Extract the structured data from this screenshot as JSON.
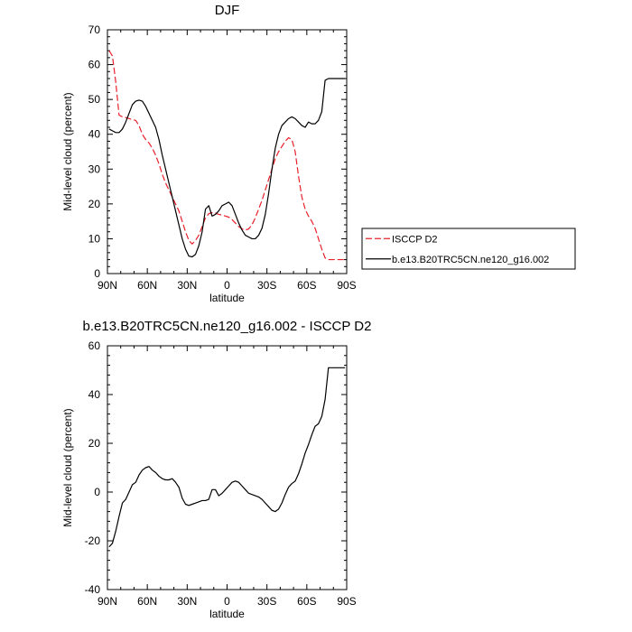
{
  "chart_data": [
    {
      "type": "line",
      "title": "DJF",
      "xlabel": "latitude",
      "ylabel": "Mid-level cloud (percent)",
      "xlim": [
        90,
        -90
      ],
      "ylim": [
        0,
        70
      ],
      "xticks": [
        90,
        60,
        30,
        0,
        -30,
        -60,
        -90
      ],
      "xticklabels": [
        "90N",
        "60N",
        "30N",
        "0",
        "30S",
        "60S",
        "90S"
      ],
      "yticks": [
        0,
        10,
        20,
        30,
        40,
        50,
        60,
        70
      ],
      "yticklabels": [
        "0",
        "10",
        "20",
        "30",
        "40",
        "50",
        "60",
        "70"
      ],
      "grid": false,
      "legend_position": "outside-right",
      "series": [
        {
          "name": "ISCCP D2",
          "color": "#e8202a",
          "dash": "dashed",
          "x": [
            88.75,
            86.25,
            83.75,
            81.25,
            78.75,
            76.25,
            73.75,
            71.25,
            68.75,
            66.25,
            63.75,
            61.25,
            58.75,
            56.25,
            53.75,
            51.25,
            48.75,
            46.25,
            43.75,
            41.25,
            38.75,
            36.25,
            33.75,
            31.25,
            28.75,
            26.25,
            23.75,
            21.25,
            18.75,
            16.25,
            13.75,
            11.25,
            8.75,
            6.25,
            3.75,
            1.25,
            -1.25,
            -3.75,
            -6.25,
            -8.75,
            -11.25,
            -13.75,
            -16.25,
            -18.75,
            -21.25,
            -23.75,
            -26.25,
            -28.75,
            -31.25,
            -33.75,
            -36.25,
            -38.75,
            -41.25,
            -43.75,
            -46.25,
            -48.75,
            -51.25,
            -53.75,
            -56.25,
            -58.75,
            -61.25,
            -63.75,
            -66.25,
            -68.75,
            -71.25,
            -73.75,
            -76.25,
            -78.75,
            -81.25,
            -83.75,
            -86.25,
            -88.75
          ],
          "values": [
            64.0,
            62.5,
            55.0,
            45.5,
            45.0,
            44.8,
            44.5,
            44.2,
            44.0,
            42.5,
            40.0,
            38.5,
            37.5,
            36.0,
            34.0,
            31.5,
            28.5,
            26.0,
            24.0,
            22.0,
            20.0,
            18.0,
            15.0,
            12.0,
            9.5,
            8.5,
            9.5,
            11.0,
            13.5,
            16.0,
            17.2,
            17.5,
            17.4,
            17.0,
            16.8,
            16.5,
            16.2,
            15.5,
            14.5,
            13.5,
            12.8,
            12.5,
            12.8,
            14.0,
            16.0,
            18.5,
            21.0,
            24.0,
            27.0,
            30.0,
            33.0,
            35.0,
            36.5,
            38.0,
            39.0,
            38.5,
            35.0,
            28.0,
            22.0,
            18.5,
            16.5,
            15.0,
            13.0,
            10.0,
            7.0,
            4.5,
            4.0,
            4.0,
            4.0,
            4.0,
            4.0,
            4.0
          ]
        },
        {
          "name": "b.e13.B20TRC5CN.ne120_g16.002",
          "color": "#000000",
          "dash": "solid",
          "x": [
            88.75,
            86.25,
            83.75,
            81.25,
            78.75,
            76.25,
            73.75,
            71.25,
            68.75,
            66.25,
            63.75,
            61.25,
            58.75,
            56.25,
            53.75,
            51.25,
            48.75,
            46.25,
            43.75,
            41.25,
            38.75,
            36.25,
            33.75,
            31.25,
            28.75,
            26.25,
            23.75,
            21.25,
            18.75,
            16.25,
            13.75,
            11.25,
            8.75,
            6.25,
            3.75,
            1.25,
            -1.25,
            -3.75,
            -6.25,
            -8.75,
            -11.25,
            -13.75,
            -16.25,
            -18.75,
            -21.25,
            -23.75,
            -26.25,
            -28.75,
            -31.25,
            -33.75,
            -36.25,
            -38.75,
            -41.25,
            -43.75,
            -46.25,
            -48.75,
            -51.25,
            -53.75,
            -56.25,
            -58.75,
            -61.25,
            -63.75,
            -66.25,
            -68.75,
            -71.25,
            -73.75,
            -76.25,
            -78.75,
            -81.25,
            -83.75,
            -86.25,
            -88.75
          ],
          "values": [
            41.5,
            41.0,
            40.5,
            40.5,
            41.5,
            43.5,
            46.0,
            48.5,
            49.5,
            49.8,
            49.5,
            48.0,
            46.0,
            44.0,
            42.0,
            38.5,
            34.0,
            30.0,
            26.0,
            22.0,
            18.0,
            14.0,
            10.0,
            7.0,
            5.0,
            4.8,
            5.5,
            8.0,
            12.0,
            18.5,
            19.5,
            16.5,
            17.0,
            18.0,
            19.5,
            20.0,
            20.5,
            19.5,
            17.0,
            14.5,
            12.5,
            11.0,
            10.5,
            10.0,
            10.0,
            11.0,
            13.0,
            17.0,
            23.0,
            30.0,
            36.0,
            40.0,
            42.5,
            43.5,
            44.5,
            45.0,
            44.5,
            43.5,
            42.5,
            42.0,
            43.5,
            43.0,
            43.0,
            44.0,
            46.5,
            55.5,
            56.0,
            56.0,
            56.0,
            56.0,
            56.0,
            56.0
          ]
        }
      ]
    },
    {
      "type": "line",
      "title": "b.e13.B20TRC5CN.ne120_g16.002 - ISCCP D2",
      "xlabel": "latitude",
      "ylabel": "Mid-level cloud (percent)",
      "xlim": [
        90,
        -90
      ],
      "ylim": [
        -40,
        60
      ],
      "xticks": [
        90,
        60,
        30,
        0,
        -30,
        -60,
        -90
      ],
      "xticklabels": [
        "90N",
        "60N",
        "30N",
        "0",
        "30S",
        "60S",
        "90S"
      ],
      "yticks": [
        -40,
        -20,
        0,
        20,
        40,
        60
      ],
      "yticklabels": [
        "-40",
        "-20",
        "0",
        "20",
        "40",
        "60"
      ],
      "grid": false,
      "series": [
        {
          "color": "#000000",
          "dash": "solid",
          "x": [
            88.75,
            86.25,
            83.75,
            81.25,
            78.75,
            76.25,
            73.75,
            71.25,
            68.75,
            66.25,
            63.75,
            61.25,
            58.75,
            56.25,
            53.75,
            51.25,
            48.75,
            46.25,
            43.75,
            41.25,
            38.75,
            36.25,
            33.75,
            31.25,
            28.75,
            26.25,
            23.75,
            21.25,
            18.75,
            16.25,
            13.75,
            11.25,
            8.75,
            6.25,
            3.75,
            1.25,
            -1.25,
            -3.75,
            -6.25,
            -8.75,
            -11.25,
            -13.75,
            -16.25,
            -18.75,
            -21.25,
            -23.75,
            -26.25,
            -28.75,
            -31.25,
            -33.75,
            -36.25,
            -38.75,
            -41.25,
            -43.75,
            -46.25,
            -48.75,
            -51.25,
            -53.75,
            -56.25,
            -58.75,
            -61.25,
            -63.75,
            -66.25,
            -68.75,
            -71.25,
            -73.75,
            -76.25,
            -78.75,
            -81.25,
            -83.75,
            -86.25,
            -88.75
          ],
          "values": [
            -22.5,
            -21.0,
            -16.0,
            -10.0,
            -4.5,
            -3.0,
            0.0,
            3.0,
            4.0,
            7.0,
            9.0,
            10.0,
            10.5,
            9.0,
            8.0,
            6.5,
            5.5,
            5.0,
            5.0,
            5.5,
            4.0,
            2.0,
            -2.5,
            -5.0,
            -5.5,
            -5.0,
            -4.5,
            -4.0,
            -3.5,
            -3.5,
            -3.0,
            1.0,
            1.0,
            -1.5,
            -0.5,
            1.0,
            2.5,
            4.0,
            4.5,
            4.0,
            2.5,
            1.0,
            -0.5,
            -1.0,
            -1.5,
            -2.0,
            -3.0,
            -4.5,
            -6.0,
            -7.5,
            -8.0,
            -7.0,
            -4.5,
            -1.0,
            2.0,
            3.5,
            4.5,
            7.5,
            11.5,
            16.0,
            19.5,
            23.5,
            27.0,
            28.0,
            31.0,
            38.0,
            51.0,
            51.0,
            51.0,
            51.0,
            51.0,
            51.0
          ]
        }
      ]
    }
  ]
}
